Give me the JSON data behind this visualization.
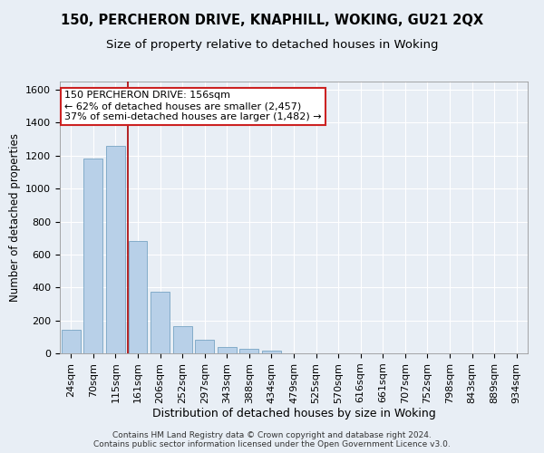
{
  "title": "150, PERCHERON DRIVE, KNAPHILL, WOKING, GU21 2QX",
  "subtitle": "Size of property relative to detached houses in Woking",
  "xlabel": "Distribution of detached houses by size in Woking",
  "ylabel": "Number of detached properties",
  "categories": [
    "24sqm",
    "70sqm",
    "115sqm",
    "161sqm",
    "206sqm",
    "252sqm",
    "297sqm",
    "343sqm",
    "388sqm",
    "434sqm",
    "479sqm",
    "525sqm",
    "570sqm",
    "616sqm",
    "661sqm",
    "707sqm",
    "752sqm",
    "798sqm",
    "843sqm",
    "889sqm",
    "934sqm"
  ],
  "values": [
    145,
    1180,
    1260,
    680,
    375,
    165,
    80,
    38,
    25,
    18,
    0,
    0,
    0,
    0,
    0,
    0,
    0,
    0,
    0,
    0,
    0
  ],
  "bar_color": "#b8d0e8",
  "bar_edge_color": "#6699bb",
  "vline_color": "#aa0000",
  "annotation_text": "150 PERCHERON DRIVE: 156sqm\n← 62% of detached houses are smaller (2,457)\n37% of semi-detached houses are larger (1,482) →",
  "annotation_box_color": "#ffffff",
  "annotation_box_edge": "#cc2222",
  "ylim": [
    0,
    1650
  ],
  "yticks": [
    0,
    200,
    400,
    600,
    800,
    1000,
    1200,
    1400,
    1600
  ],
  "bg_color": "#e8eef5",
  "plot_bg": "#e8eef5",
  "footer": "Contains HM Land Registry data © Crown copyright and database right 2024.\nContains public sector information licensed under the Open Government Licence v3.0.",
  "title_fontsize": 10.5,
  "subtitle_fontsize": 9.5,
  "xlabel_fontsize": 9,
  "ylabel_fontsize": 8.5,
  "tick_fontsize": 8,
  "annot_fontsize": 8,
  "footer_fontsize": 6.5
}
